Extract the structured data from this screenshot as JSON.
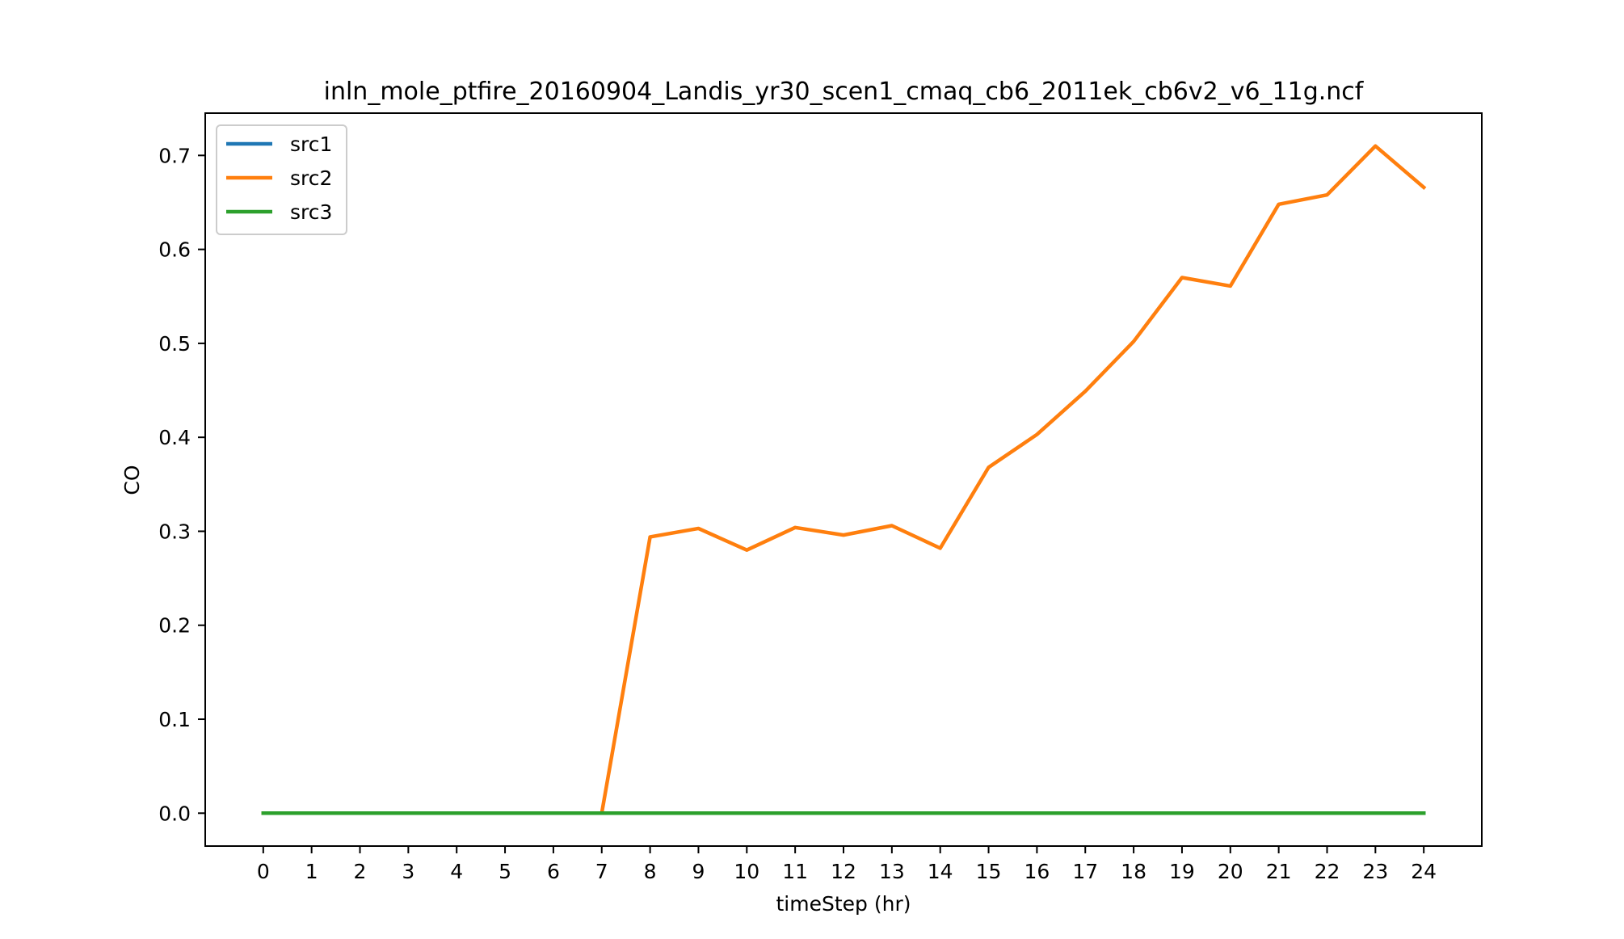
{
  "chart_data": {
    "type": "line",
    "title": "inln_mole_ptfire_20160904_Landis_yr30_scen1_cmaq_cb6_2011ek_cb6v2_v6_11g.ncf",
    "xlabel": "timeStep (hr)",
    "ylabel": "CO",
    "x": [
      0,
      1,
      2,
      3,
      4,
      5,
      6,
      7,
      8,
      9,
      10,
      11,
      12,
      13,
      14,
      15,
      16,
      17,
      18,
      19,
      20,
      21,
      22,
      23,
      24
    ],
    "xlim": [
      -1.2,
      25.2
    ],
    "ylim": [
      -0.035,
      0.745
    ],
    "xticks": [
      0,
      1,
      2,
      3,
      4,
      5,
      6,
      7,
      8,
      9,
      10,
      11,
      12,
      13,
      14,
      15,
      16,
      17,
      18,
      19,
      20,
      21,
      22,
      23,
      24
    ],
    "yticks": [
      0.0,
      0.1,
      0.2,
      0.3,
      0.4,
      0.5,
      0.6,
      0.7
    ],
    "ytick_labels": [
      "0.0",
      "0.1",
      "0.2",
      "0.3",
      "0.4",
      "0.5",
      "0.6",
      "0.7"
    ],
    "grid": false,
    "legend_position": "top-left",
    "series": [
      {
        "name": "src1",
        "color": "#1f77b4",
        "values": [
          0,
          0,
          0,
          0,
          0,
          0,
          0,
          0,
          0,
          0,
          0,
          0,
          0,
          0,
          0,
          0,
          0,
          0,
          0,
          0,
          0,
          0,
          0,
          0,
          0
        ]
      },
      {
        "name": "src2",
        "color": "#ff7f0e",
        "values": [
          0,
          0,
          0,
          0,
          0,
          0,
          0,
          0,
          0.294,
          0.303,
          0.28,
          0.304,
          0.296,
          0.306,
          0.282,
          0.368,
          0.403,
          0.449,
          0.502,
          0.57,
          0.561,
          0.648,
          0.658,
          0.71,
          0.666
        ]
      },
      {
        "name": "src3",
        "color": "#2ca02c",
        "values": [
          0,
          0,
          0,
          0,
          0,
          0,
          0,
          0,
          0,
          0,
          0,
          0,
          0,
          0,
          0,
          0,
          0,
          0,
          0,
          0,
          0,
          0,
          0,
          0,
          0
        ]
      }
    ]
  }
}
